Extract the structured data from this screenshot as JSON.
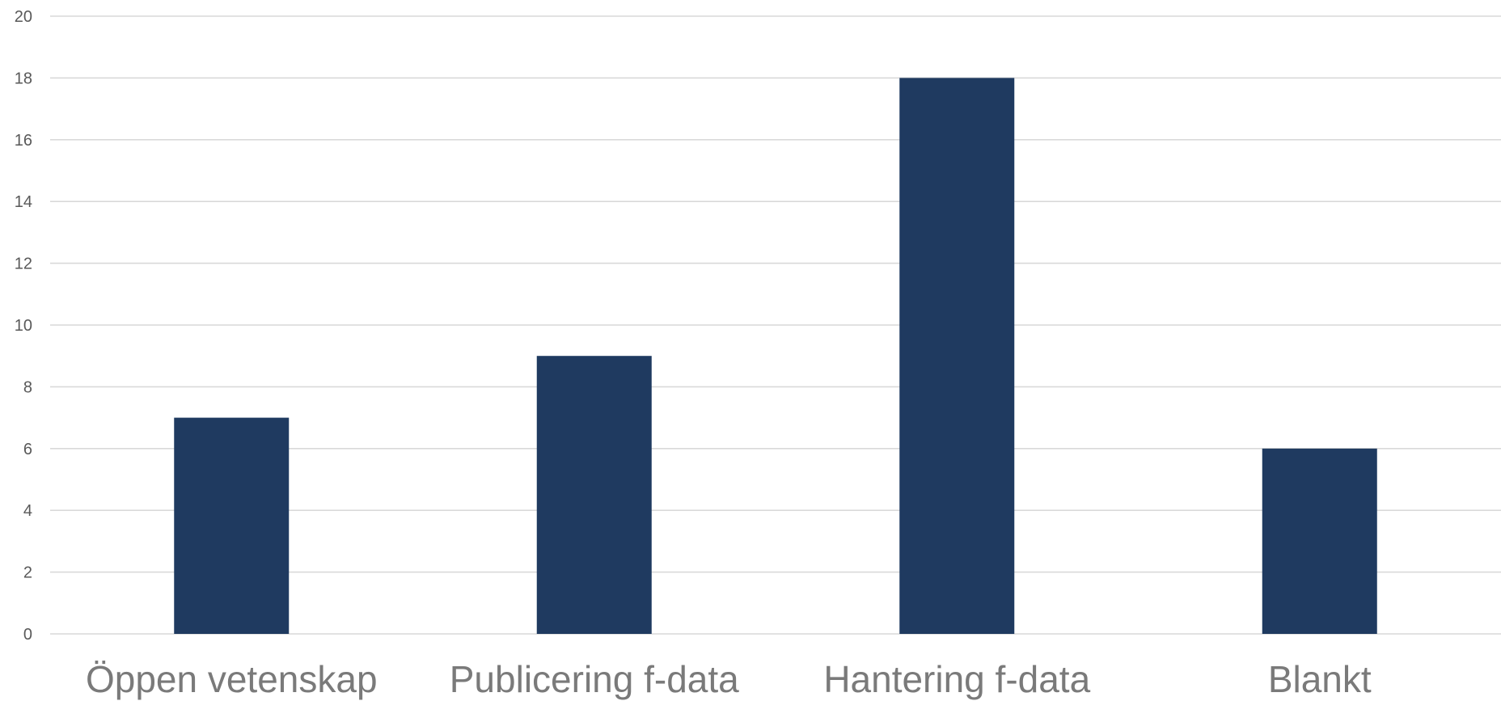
{
  "chart_data": {
    "type": "bar",
    "title": "",
    "xlabel": "",
    "ylabel": "",
    "categories": [
      "Öppen vetenskap",
      "Publicering f-data",
      "Hantering f-data",
      "Blankt"
    ],
    "values": [
      7,
      9,
      18,
      6
    ],
    "ylim": [
      0,
      20
    ],
    "yticks": [
      0,
      2,
      4,
      6,
      8,
      10,
      12,
      14,
      16,
      18,
      20
    ],
    "grid": true,
    "legend": "none",
    "bar_color": "#1f3a60",
    "grid_color": "#d9d9d9"
  }
}
